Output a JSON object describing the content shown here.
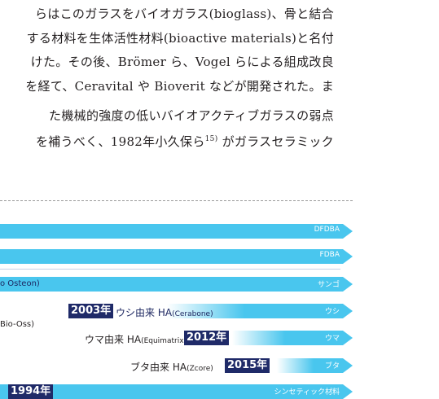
{
  "paragraph": {
    "lines": [
      "らはこのガラスをバイオガラス(bioglass)、骨と結合",
      "する材料を生体活性材料(bioactive materials)と名付",
      "けた。その後、Brömer ら、Vogel らによる組成改良",
      "を経て、Ceravital や Bioverit などが開発された。ま",
      "た機械的強度の低いバイオアクティブガラスの弱点"
    ],
    "last_line_before_ref": "を補うべく、1982年小久保ら",
    "reference_number": "15)",
    "last_line_after_ref": " がガラスセラミック"
  },
  "timeline": {
    "rows": [
      {
        "end_label": "DFDBA"
      },
      {
        "end_label": "FDBA"
      },
      {
        "left_text": "o Osteon)",
        "end_label": "サンゴ"
      },
      {
        "year": "2003年",
        "text": "ウシ由来 HA",
        "text_sub": "(Cerabone)",
        "end_label": "ウシ",
        "left_text": "Bio-Oss)"
      },
      {
        "text": "ウマ由来 HA",
        "text_sub": "(Equimatrix)",
        "year": "2012年",
        "end_label": "ウマ"
      },
      {
        "text": "ブタ由来 HA",
        "text_sub": "(Zcore)",
        "year": "2015年",
        "end_label": "ブタ"
      },
      {
        "year": "1994年",
        "end_label": "シンセティック材料"
      }
    ]
  }
}
